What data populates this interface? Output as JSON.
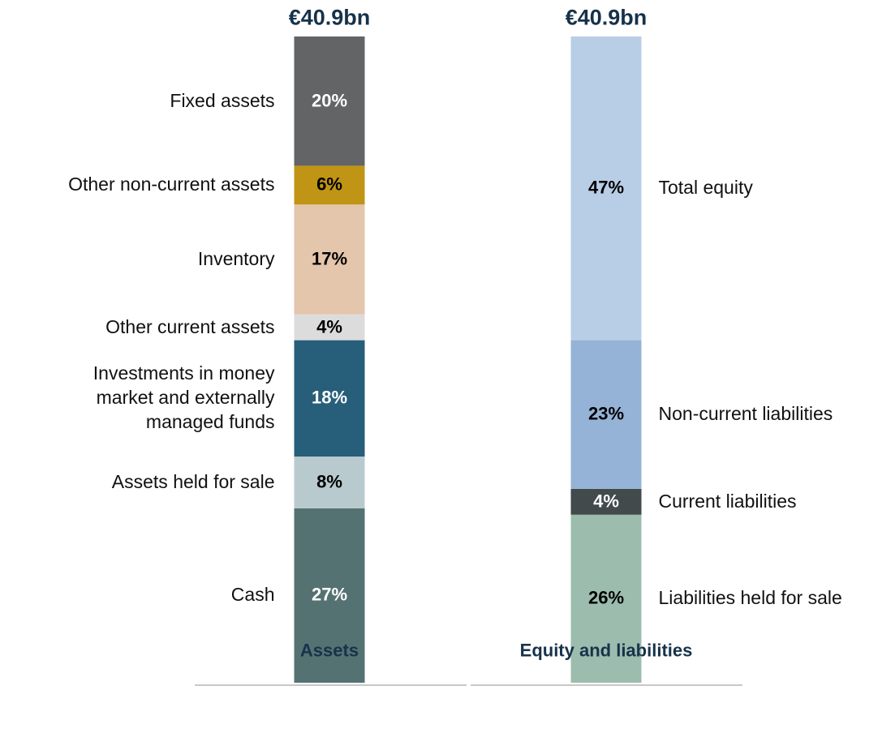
{
  "chart_data": {
    "type": "stacked_bar",
    "stacks": [
      {
        "category": "Assets",
        "total_label": "€40.9bn",
        "label_side": "left",
        "segments": [
          {
            "name": "Cash",
            "value": 27,
            "value_label": "27%",
            "color": "#557273",
            "text_color": "#ffffff"
          },
          {
            "name": "Assets held for sale",
            "value": 8,
            "value_label": "8%",
            "color": "#b9cacf",
            "text_color": "#000000"
          },
          {
            "name": "Investments in money\nmarket and externally\nmanaged funds",
            "value": 18,
            "value_label": "18%",
            "color": "#275e7a",
            "text_color": "#ffffff"
          },
          {
            "name": "Other current assets",
            "value": 4,
            "value_label": "4%",
            "color": "#dcdcdc",
            "text_color": "#000000"
          },
          {
            "name": "Inventory",
            "value": 17,
            "value_label": "17%",
            "color": "#e4c6ad",
            "text_color": "#000000"
          },
          {
            "name": "Other non-current assets",
            "value": 6,
            "value_label": "6%",
            "color": "#c09415",
            "text_color": "#000000"
          },
          {
            "name": "Fixed assets",
            "value": 20,
            "value_label": "20%",
            "color": "#636466",
            "text_color": "#ffffff"
          }
        ]
      },
      {
        "category": "Equity and liabilities",
        "total_label": "€40.9bn",
        "label_side": "right",
        "segments": [
          {
            "name": "Liabilities held for sale",
            "value": 26,
            "value_label": "26%",
            "color": "#9cbcae",
            "text_color": "#000000"
          },
          {
            "name": "Current liabilities",
            "value": 4,
            "value_label": "4%",
            "color": "#434a4c",
            "text_color": "#ffffff"
          },
          {
            "name": "Non-current liabilities",
            "value": 23,
            "value_label": "23%",
            "color": "#95b3d7",
            "text_color": "#000000"
          },
          {
            "name": "Total equity",
            "value": 47,
            "value_label": "47%",
            "color": "#b8cde6",
            "text_color": "#000000"
          }
        ]
      }
    ]
  }
}
